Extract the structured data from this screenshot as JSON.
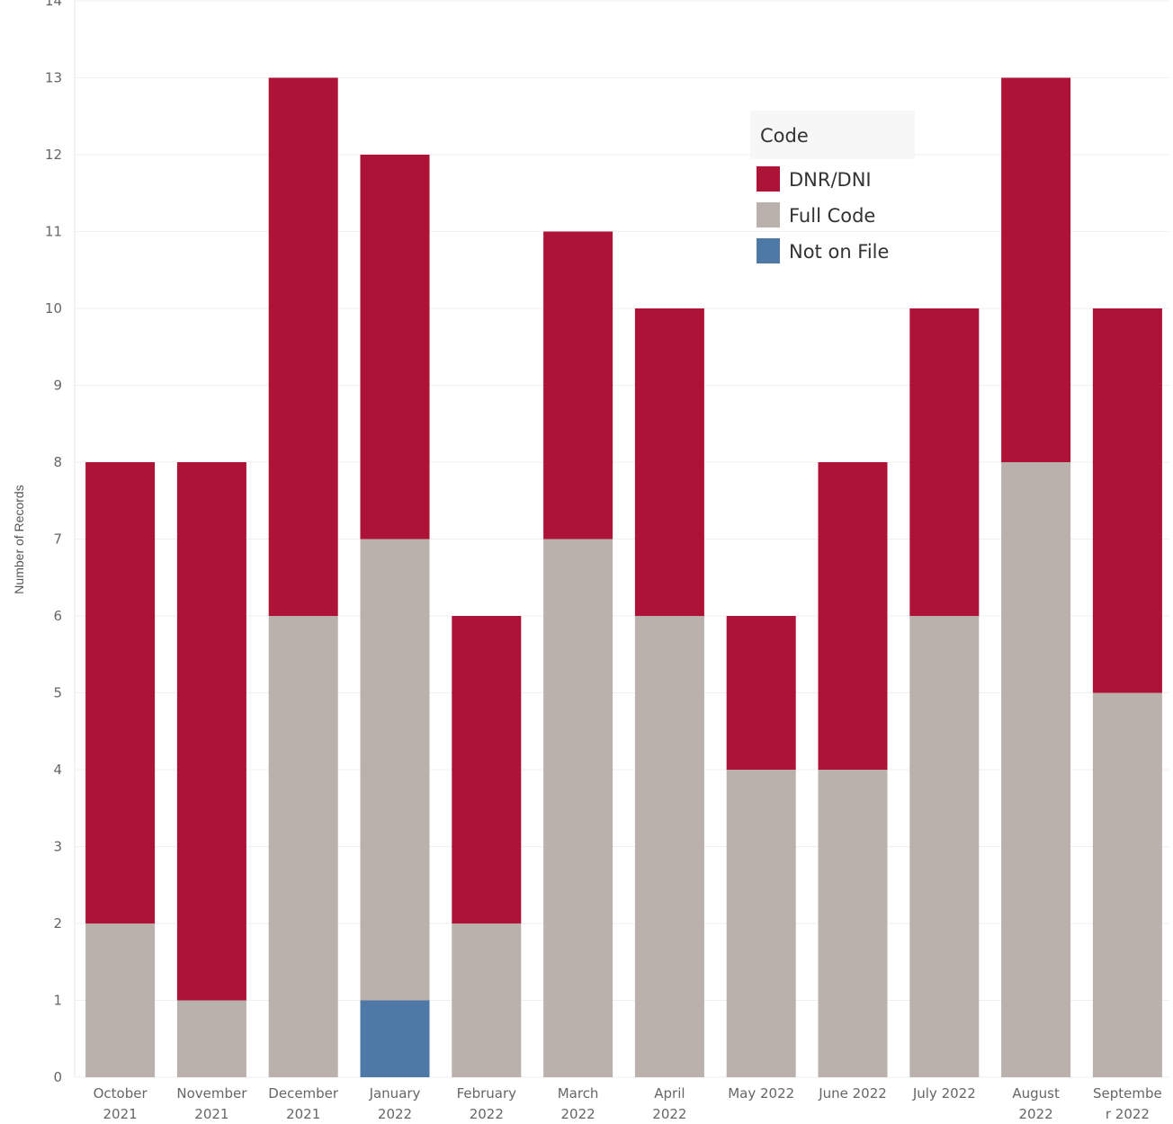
{
  "chart_data": {
    "type": "bar",
    "stacked": true,
    "ylabel": "Number of Records",
    "ylim": [
      0,
      14
    ],
    "yticks": [
      0,
      1,
      2,
      3,
      4,
      5,
      6,
      7,
      8,
      9,
      10,
      11,
      12,
      13,
      14
    ],
    "grid": true,
    "legend_placement": "top-right",
    "categories": [
      [
        "October",
        "2021"
      ],
      [
        "November",
        "2021"
      ],
      [
        "December",
        "2021"
      ],
      [
        "January",
        "2022"
      ],
      [
        "February",
        "2022"
      ],
      [
        "March",
        "2022"
      ],
      [
        "April",
        "2022"
      ],
      [
        "May 2022"
      ],
      [
        "June 2022"
      ],
      [
        "July 2022"
      ],
      [
        "August",
        "2022"
      ],
      [
        "Septembe",
        "r 2022"
      ]
    ],
    "legend_title": "Code",
    "series": [
      {
        "name": "Not on File",
        "color": "#4e79a7",
        "values": [
          0,
          0,
          0,
          1,
          0,
          0,
          0,
          0,
          0,
          0,
          0,
          0
        ]
      },
      {
        "name": "Full Code",
        "color": "#bab0ac",
        "values": [
          2,
          1,
          6,
          6,
          2,
          7,
          6,
          4,
          4,
          6,
          8,
          5
        ]
      },
      {
        "name": "DNR/DNI",
        "color": "#ad1237",
        "values": [
          6,
          7,
          7,
          5,
          4,
          4,
          4,
          2,
          4,
          4,
          5,
          5
        ]
      }
    ],
    "legend_order": [
      "DNR/DNI",
      "Full Code",
      "Not on File"
    ]
  }
}
